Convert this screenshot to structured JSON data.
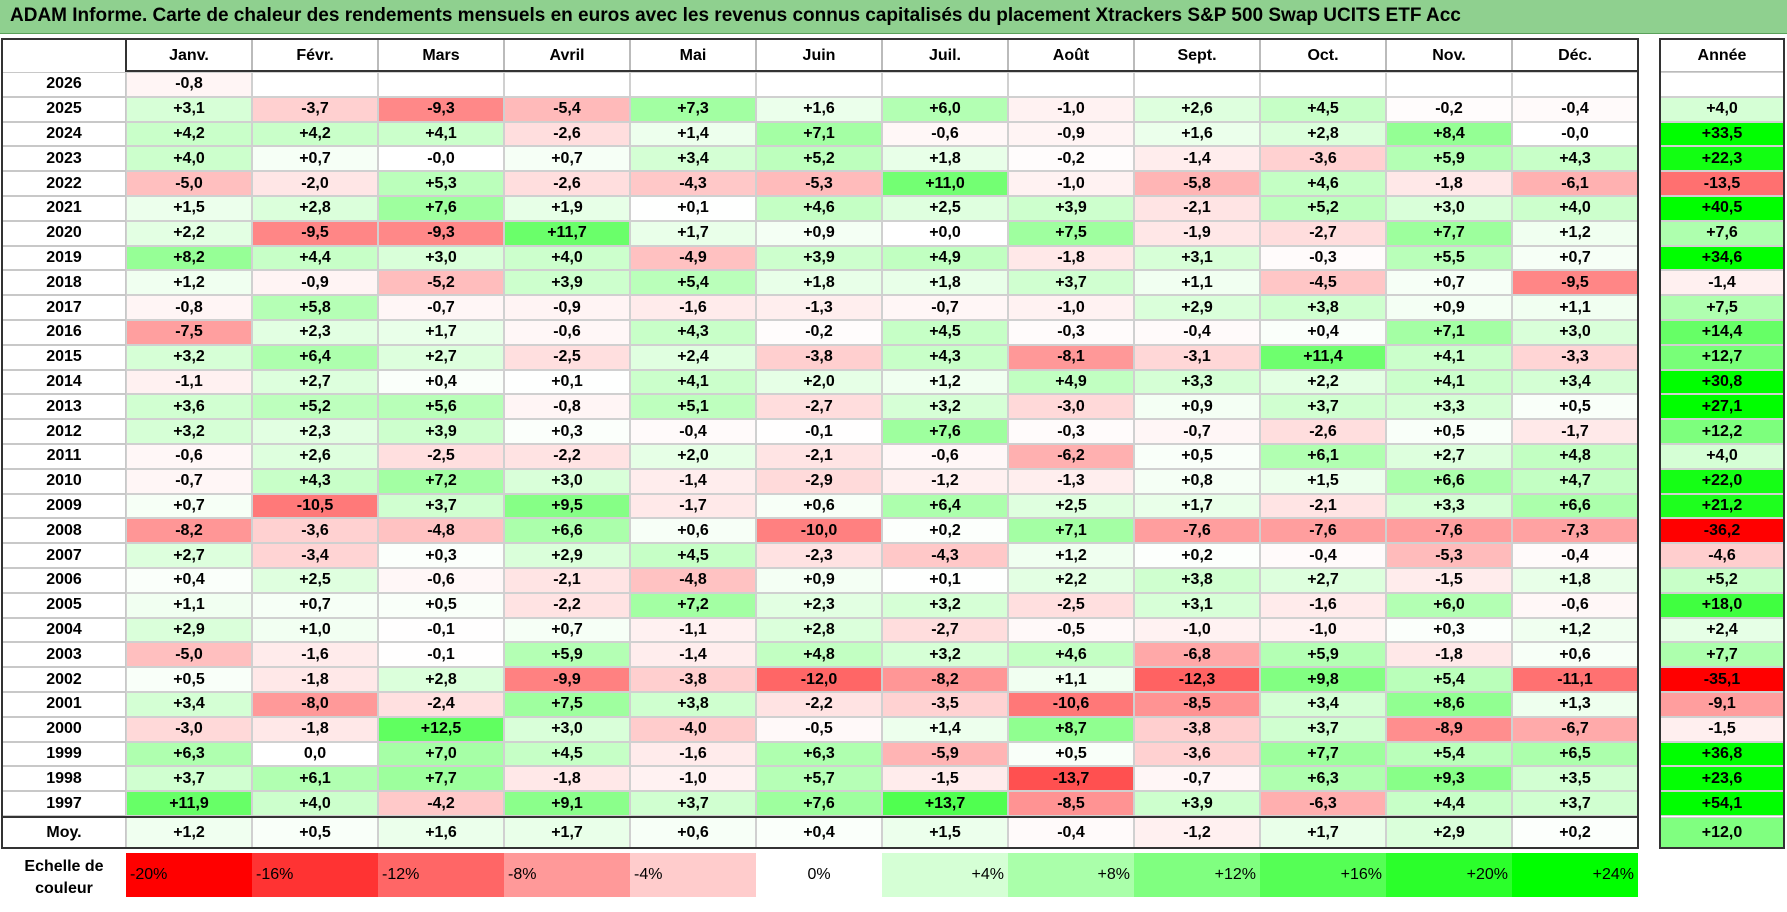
{
  "title": "ADAM Informe. Carte de chaleur des rendements mensuels en euros avec les revenus connus capitalisés du placement Xtrackers S&P 500 Swap UCITS ETF Acc",
  "colors": {
    "negative_max": "#ff0000",
    "zero": "#ffffff",
    "positive_max": "#00ff00",
    "title_bar": "#8fd08f"
  },
  "chart_data": {
    "type": "heatmap",
    "months": [
      "Janv.",
      "Févr.",
      "Mars",
      "Avril",
      "Mai",
      "Juin",
      "Juil.",
      "Août",
      "Sept.",
      "Oct.",
      "Nov.",
      "Déc."
    ],
    "year_header": "Année",
    "rows": [
      {
        "year": "2026",
        "values": [
          "-0,8",
          "",
          "",
          "",
          "",
          "",
          "",
          "",
          "",
          "",
          "",
          ""
        ],
        "annual": ""
      },
      {
        "year": "2025",
        "values": [
          "+3,1",
          "-3,7",
          "-9,3",
          "-5,4",
          "+7,3",
          "+1,6",
          "+6,0",
          "-1,0",
          "+2,6",
          "+4,5",
          "-0,2",
          "-0,4"
        ],
        "annual": "+4,0"
      },
      {
        "year": "2024",
        "values": [
          "+4,2",
          "+4,2",
          "+4,1",
          "-2,6",
          "+1,4",
          "+7,1",
          "-0,6",
          "-0,9",
          "+1,6",
          "+2,8",
          "+8,4",
          "-0,0"
        ],
        "annual": "+33,5"
      },
      {
        "year": "2023",
        "values": [
          "+4,0",
          "+0,7",
          "-0,0",
          "+0,7",
          "+3,4",
          "+5,2",
          "+1,8",
          "-0,2",
          "-1,4",
          "-3,6",
          "+5,9",
          "+4,3"
        ],
        "annual": "+22,3"
      },
      {
        "year": "2022",
        "values": [
          "-5,0",
          "-2,0",
          "+5,3",
          "-2,6",
          "-4,3",
          "-5,3",
          "+11,0",
          "-1,0",
          "-5,8",
          "+4,6",
          "-1,8",
          "-6,1"
        ],
        "annual": "-13,5"
      },
      {
        "year": "2021",
        "values": [
          "+1,5",
          "+2,8",
          "+7,6",
          "+1,9",
          "+0,1",
          "+4,6",
          "+2,5",
          "+3,9",
          "-2,1",
          "+5,2",
          "+3,0",
          "+4,0"
        ],
        "annual": "+40,5"
      },
      {
        "year": "2020",
        "values": [
          "+2,2",
          "-9,5",
          "-9,3",
          "+11,7",
          "+1,7",
          "+0,9",
          "+0,0",
          "+7,5",
          "-1,9",
          "-2,7",
          "+7,7",
          "+1,2"
        ],
        "annual": "+7,6"
      },
      {
        "year": "2019",
        "values": [
          "+8,2",
          "+4,4",
          "+3,0",
          "+4,0",
          "-4,9",
          "+3,9",
          "+4,9",
          "-1,8",
          "+3,1",
          "-0,3",
          "+5,5",
          "+0,7"
        ],
        "annual": "+34,6"
      },
      {
        "year": "2018",
        "values": [
          "+1,2",
          "-0,9",
          "-5,2",
          "+3,9",
          "+5,4",
          "+1,8",
          "+1,8",
          "+3,7",
          "+1,1",
          "-4,5",
          "+0,7",
          "-9,5"
        ],
        "annual": "-1,4"
      },
      {
        "year": "2017",
        "values": [
          "-0,8",
          "+5,8",
          "-0,7",
          "-0,9",
          "-1,6",
          "-1,3",
          "-0,7",
          "-1,0",
          "+2,9",
          "+3,8",
          "+0,9",
          "+1,1"
        ],
        "annual": "+7,5"
      },
      {
        "year": "2016",
        "values": [
          "-7,5",
          "+2,3",
          "+1,7",
          "-0,6",
          "+4,3",
          "-0,2",
          "+4,5",
          "-0,3",
          "-0,4",
          "+0,4",
          "+7,1",
          "+3,0"
        ],
        "annual": "+14,4"
      },
      {
        "year": "2015",
        "values": [
          "+3,2",
          "+6,4",
          "+2,7",
          "-2,5",
          "+2,4",
          "-3,8",
          "+4,3",
          "-8,1",
          "-3,1",
          "+11,4",
          "+4,1",
          "-3,3"
        ],
        "annual": "+12,7"
      },
      {
        "year": "2014",
        "values": [
          "-1,1",
          "+2,7",
          "+0,4",
          "+0,1",
          "+4,1",
          "+2,0",
          "+1,2",
          "+4,9",
          "+3,3",
          "+2,2",
          "+4,1",
          "+3,4"
        ],
        "annual": "+30,8"
      },
      {
        "year": "2013",
        "values": [
          "+3,6",
          "+5,2",
          "+5,6",
          "-0,8",
          "+5,1",
          "-2,7",
          "+3,2",
          "-3,0",
          "+0,9",
          "+3,7",
          "+3,3",
          "+0,5"
        ],
        "annual": "+27,1"
      },
      {
        "year": "2012",
        "values": [
          "+3,2",
          "+2,3",
          "+3,9",
          "+0,3",
          "-0,4",
          "-0,1",
          "+7,6",
          "-0,3",
          "-0,7",
          "-2,6",
          "+0,5",
          "-1,7"
        ],
        "annual": "+12,2"
      },
      {
        "year": "2011",
        "values": [
          "-0,6",
          "+2,6",
          "-2,5",
          "-2,2",
          "+2,0",
          "-2,1",
          "-0,6",
          "-6,2",
          "+0,5",
          "+6,1",
          "+2,7",
          "+4,8"
        ],
        "annual": "+4,0"
      },
      {
        "year": "2010",
        "values": [
          "-0,7",
          "+4,3",
          "+7,2",
          "+3,0",
          "-1,4",
          "-2,9",
          "-1,2",
          "-1,3",
          "+0,8",
          "+1,5",
          "+6,6",
          "+4,7"
        ],
        "annual": "+22,0"
      },
      {
        "year": "2009",
        "values": [
          "+0,7",
          "-10,5",
          "+3,7",
          "+9,5",
          "-1,7",
          "+0,6",
          "+6,4",
          "+2,5",
          "+1,7",
          "-2,1",
          "+3,3",
          "+6,6"
        ],
        "annual": "+21,2"
      },
      {
        "year": "2008",
        "values": [
          "-8,2",
          "-3,6",
          "-4,8",
          "+6,6",
          "+0,6",
          "-10,0",
          "+0,2",
          "+7,1",
          "-7,6",
          "-7,6",
          "-7,6",
          "-7,3"
        ],
        "annual": "-36,2"
      },
      {
        "year": "2007",
        "values": [
          "+2,7",
          "-3,4",
          "+0,3",
          "+2,9",
          "+4,5",
          "-2,3",
          "-4,3",
          "+1,2",
          "+0,2",
          "-0,4",
          "-5,3",
          "-0,4"
        ],
        "annual": "-4,6"
      },
      {
        "year": "2006",
        "values": [
          "+0,4",
          "+2,5",
          "-0,6",
          "-2,1",
          "-4,8",
          "+0,9",
          "+0,1",
          "+2,2",
          "+3,8",
          "+2,7",
          "-1,5",
          "+1,8"
        ],
        "annual": "+5,2"
      },
      {
        "year": "2005",
        "values": [
          "+1,1",
          "+0,7",
          "+0,5",
          "-2,2",
          "+7,2",
          "+2,3",
          "+3,2",
          "-2,5",
          "+3,1",
          "-1,6",
          "+6,0",
          "-0,6"
        ],
        "annual": "+18,0"
      },
      {
        "year": "2004",
        "values": [
          "+2,9",
          "+1,0",
          "-0,1",
          "+0,7",
          "-1,1",
          "+2,8",
          "-2,7",
          "-0,5",
          "-1,0",
          "-1,0",
          "+0,3",
          "+1,2"
        ],
        "annual": "+2,4"
      },
      {
        "year": "2003",
        "values": [
          "-5,0",
          "-1,6",
          "-0,1",
          "+5,9",
          "-1,4",
          "+4,8",
          "+3,2",
          "+4,6",
          "-6,8",
          "+5,9",
          "-1,8",
          "+0,6"
        ],
        "annual": "+7,7"
      },
      {
        "year": "2002",
        "values": [
          "+0,5",
          "-1,8",
          "+2,8",
          "-9,9",
          "-3,8",
          "-12,0",
          "-8,2",
          "+1,1",
          "-12,3",
          "+9,8",
          "+5,4",
          "-11,1"
        ],
        "annual": "-35,1"
      },
      {
        "year": "2001",
        "values": [
          "+3,4",
          "-8,0",
          "-2,4",
          "+7,5",
          "+3,8",
          "-2,2",
          "-3,5",
          "-10,6",
          "-8,5",
          "+3,4",
          "+8,6",
          "+1,3"
        ],
        "annual": "-9,1"
      },
      {
        "year": "2000",
        "values": [
          "-3,0",
          "-1,8",
          "+12,5",
          "+3,0",
          "-4,0",
          "-0,5",
          "+1,4",
          "+8,7",
          "-3,8",
          "+3,7",
          "-8,9",
          "-6,7"
        ],
        "annual": "-1,5"
      },
      {
        "year": "1999",
        "values": [
          "+6,3",
          "0,0",
          "+7,0",
          "+4,5",
          "-1,6",
          "+6,3",
          "-5,9",
          "+0,5",
          "-3,6",
          "+7,7",
          "+5,4",
          "+6,5"
        ],
        "annual": "+36,8"
      },
      {
        "year": "1998",
        "values": [
          "+3,7",
          "+6,1",
          "+7,7",
          "-1,8",
          "-1,0",
          "+5,7",
          "-1,5",
          "-13,7",
          "-0,7",
          "+6,3",
          "+9,3",
          "+3,5"
        ],
        "annual": "+23,6"
      },
      {
        "year": "1997",
        "values": [
          "+11,9",
          "+4,0",
          "-4,2",
          "+9,1",
          "+3,7",
          "+7,6",
          "+13,7",
          "-8,5",
          "+3,9",
          "-6,3",
          "+4,4",
          "+3,7"
        ],
        "annual": "+54,1"
      }
    ],
    "average_label": "Moy.",
    "average_values": [
      "+1,2",
      "+0,5",
      "+1,6",
      "+1,7",
      "+0,6",
      "+0,4",
      "+1,5",
      "-0,4",
      "-1,2",
      "+1,7",
      "+2,9",
      "+0,2"
    ],
    "average_annual": "+12,0",
    "scale_label": "Echelle de couleur",
    "scale": [
      {
        "label": "-20%",
        "value": -20
      },
      {
        "label": "-16%",
        "value": -16
      },
      {
        "label": "-12%",
        "value": -12
      },
      {
        "label": "-8%",
        "value": -8
      },
      {
        "label": "-4%",
        "value": -4
      },
      {
        "label": "0%",
        "value": 0
      },
      {
        "label": "+4%",
        "value": 4
      },
      {
        "label": "+8%",
        "value": 8
      },
      {
        "label": "+12%",
        "value": 12
      },
      {
        "label": "+16%",
        "value": 16
      },
      {
        "label": "+20%",
        "value": 20
      },
      {
        "label": "+24%",
        "value": 24
      }
    ]
  }
}
